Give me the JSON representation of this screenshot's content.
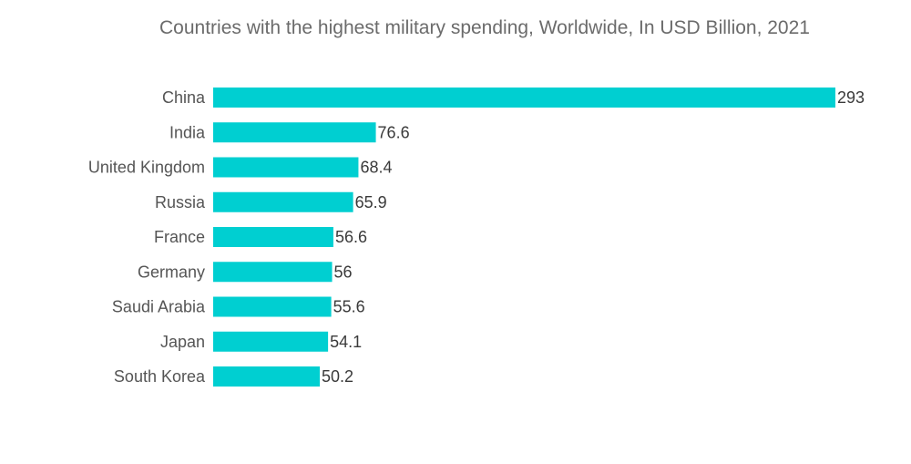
{
  "chart_data": {
    "type": "bar",
    "orientation": "horizontal",
    "title": "Countries with the highest military spending, Worldwide, In USD Billion, 2021",
    "categories": [
      "China",
      "India",
      "United Kingdom",
      "Russia",
      "France",
      "Germany",
      "Saudi Arabia",
      "Japan",
      "South Korea"
    ],
    "values": [
      293,
      76.6,
      68.4,
      65.9,
      56.6,
      56,
      55.6,
      54.1,
      50.2
    ],
    "value_labels": [
      "293",
      "76.6",
      "68.4",
      "65.9",
      "56.6",
      "56",
      "55.6",
      "54.1",
      "50.2"
    ],
    "xlim": [
      0,
      293
    ],
    "grid": false,
    "legend": "none",
    "bar_color": "#00cfd1"
  }
}
